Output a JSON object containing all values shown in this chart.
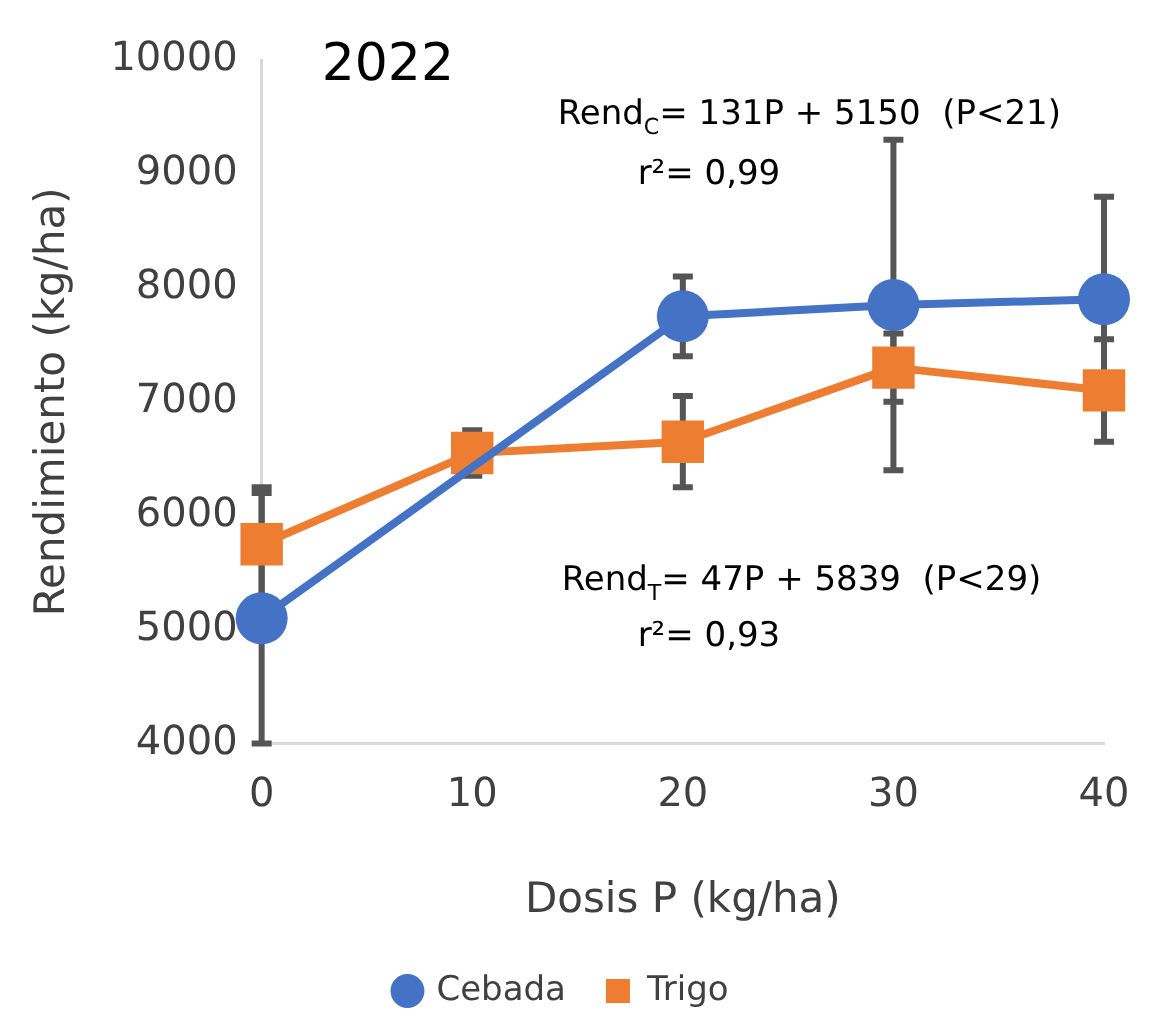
{
  "chart_data": {
    "type": "line",
    "title": "2022",
    "xlabel": "Dosis P (kg/ha)",
    "ylabel": "Rendimiento (kg/ha)",
    "xlim": [
      0,
      40
    ],
    "xticks": [
      0,
      10,
      20,
      30,
      40
    ],
    "ylim": [
      4000,
      10000
    ],
    "yticks": [
      4000,
      5000,
      6000,
      7000,
      8000,
      9000,
      10000
    ],
    "grid": false,
    "legend": "bottom",
    "series": [
      {
        "name": "Cebada",
        "color": "#4472c4",
        "marker": "circle",
        "x": [
          0,
          20,
          30,
          40
        ],
        "values": [
          5100,
          7750,
          7850,
          7900
        ],
        "errors": [
          1100,
          350,
          1450,
          900
        ]
      },
      {
        "name": "Trigo",
        "color": "#ed7d31",
        "marker": "square",
        "x": [
          0,
          10,
          20,
          30,
          40
        ],
        "values": [
          5750,
          6550,
          6650,
          7300,
          7100
        ],
        "errors": [
          500,
          200,
          400,
          300,
          450
        ]
      }
    ],
    "annotations": [
      "Rend$_{C}$= 131P + 5150  (P<21)",
      "r²= 0,99",
      "Rend$_{T}$= 47P + 5839  (P<29)",
      "r²= 0,93"
    ]
  }
}
